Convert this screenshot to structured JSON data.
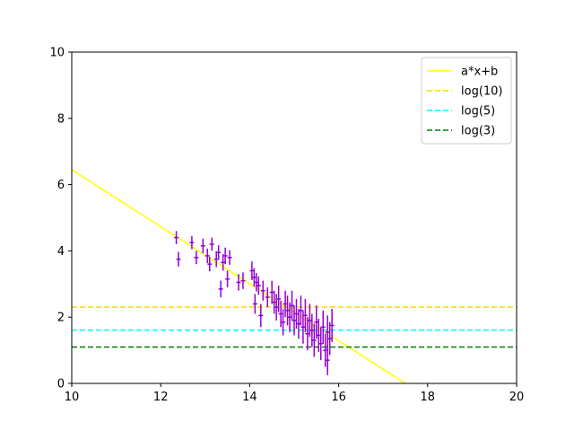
{
  "chart_data": {
    "type": "scatter",
    "title": "",
    "xlabel": "",
    "ylabel": "",
    "xlim": [
      10,
      20
    ],
    "ylim": [
      0,
      10
    ],
    "x_ticks": [
      "10",
      "12",
      "14",
      "16",
      "18",
      "20"
    ],
    "y_ticks": [
      "0",
      "2",
      "4",
      "6",
      "8",
      "10"
    ],
    "legend_position": "top-right",
    "grid": false,
    "series": [
      {
        "name": "a*x+b",
        "kind": "line",
        "color": "#ffff00",
        "dash": "solid",
        "x": [
          10,
          17.5
        ],
        "y": [
          6.45,
          0.0
        ]
      },
      {
        "name": "log(10)",
        "kind": "hline",
        "color": "#ffd700",
        "dash": "dashed",
        "y": 2.303
      },
      {
        "name": "log(5)",
        "kind": "hline",
        "color": "#00ffff",
        "dash": "dashed",
        "y": 1.609
      },
      {
        "name": "log(3)",
        "kind": "hline",
        "color": "#008000",
        "dash": "dashed",
        "y": 1.099
      }
    ],
    "points": {
      "color": "#9400d3",
      "marker": "errorbar",
      "data": [
        [
          12.35,
          4.4,
          0.2,
          0.05
        ],
        [
          12.4,
          3.75,
          0.22,
          0.05
        ],
        [
          12.7,
          4.25,
          0.2,
          0.05
        ],
        [
          12.8,
          3.8,
          0.2,
          0.05
        ],
        [
          12.95,
          4.15,
          0.22,
          0.05
        ],
        [
          13.05,
          3.85,
          0.22,
          0.05
        ],
        [
          13.1,
          3.6,
          0.22,
          0.05
        ],
        [
          13.15,
          4.2,
          0.2,
          0.05
        ],
        [
          13.25,
          3.75,
          0.24,
          0.05
        ],
        [
          13.3,
          3.95,
          0.22,
          0.05
        ],
        [
          13.35,
          2.85,
          0.25,
          0.05
        ],
        [
          13.4,
          3.65,
          0.25,
          0.05
        ],
        [
          13.45,
          3.85,
          0.25,
          0.05
        ],
        [
          13.5,
          3.15,
          0.25,
          0.05
        ],
        [
          13.55,
          3.8,
          0.22,
          0.05
        ],
        [
          13.75,
          3.05,
          0.25,
          0.05
        ],
        [
          13.85,
          3.1,
          0.25,
          0.05
        ],
        [
          14.05,
          3.4,
          0.28,
          0.05
        ],
        [
          14.1,
          3.2,
          0.28,
          0.05
        ],
        [
          14.12,
          2.4,
          0.3,
          0.05
        ],
        [
          14.15,
          3.05,
          0.28,
          0.05
        ],
        [
          14.2,
          2.95,
          0.28,
          0.05
        ],
        [
          14.25,
          2.05,
          0.35,
          0.05
        ],
        [
          14.3,
          2.8,
          0.3,
          0.05
        ],
        [
          14.4,
          2.6,
          0.3,
          0.05
        ],
        [
          14.5,
          2.75,
          0.35,
          0.05
        ],
        [
          14.55,
          2.45,
          0.35,
          0.05
        ],
        [
          14.6,
          2.3,
          0.4,
          0.05
        ],
        [
          14.65,
          2.55,
          0.4,
          0.05
        ],
        [
          14.7,
          2.1,
          0.4,
          0.05
        ],
        [
          14.75,
          1.85,
          0.4,
          0.05
        ],
        [
          14.8,
          2.4,
          0.4,
          0.05
        ],
        [
          14.85,
          2.2,
          0.45,
          0.05
        ],
        [
          14.9,
          2.0,
          0.45,
          0.05
        ],
        [
          14.95,
          2.35,
          0.45,
          0.05
        ],
        [
          15.0,
          1.9,
          0.45,
          0.05
        ],
        [
          15.05,
          2.1,
          0.45,
          0.05
        ],
        [
          15.1,
          1.8,
          0.45,
          0.05
        ],
        [
          15.15,
          2.2,
          0.45,
          0.05
        ],
        [
          15.2,
          1.7,
          0.5,
          0.05
        ],
        [
          15.25,
          2.05,
          0.5,
          0.05
        ],
        [
          15.3,
          1.5,
          0.5,
          0.05
        ],
        [
          15.35,
          1.9,
          0.5,
          0.05
        ],
        [
          15.4,
          1.6,
          0.5,
          0.05
        ],
        [
          15.45,
          1.3,
          0.5,
          0.05
        ],
        [
          15.5,
          1.85,
          0.5,
          0.05
        ],
        [
          15.55,
          1.45,
          0.5,
          0.05
        ],
        [
          15.6,
          1.2,
          0.5,
          0.05
        ],
        [
          15.65,
          1.7,
          0.5,
          0.05
        ],
        [
          15.7,
          1.0,
          0.5,
          0.05
        ],
        [
          15.75,
          1.55,
          0.5,
          0.05
        ],
        [
          15.8,
          1.35,
          0.5,
          0.05
        ],
        [
          15.85,
          1.75,
          0.5,
          0.05
        ],
        [
          15.75,
          0.7,
          0.45,
          0.05
        ]
      ]
    }
  }
}
